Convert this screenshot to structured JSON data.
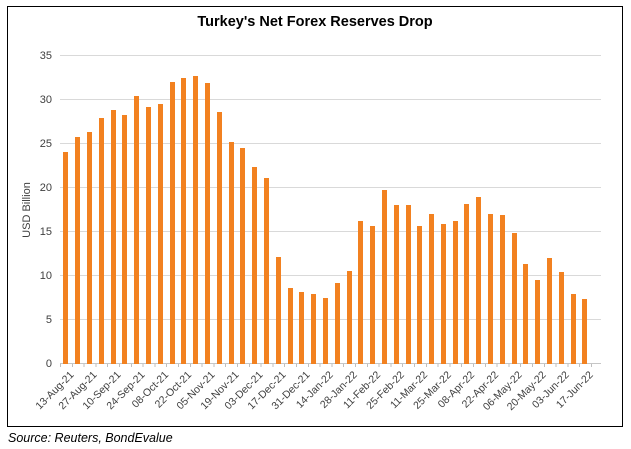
{
  "title": "Turkey's Net Forex Reserves Drop",
  "source_note": "Source: Reuters, BondEvalue",
  "chart_data": {
    "type": "bar",
    "title": "Turkey's Net Forex Reserves Drop",
    "xlabel": "",
    "ylabel": "USD Billion",
    "ylim": [
      0,
      35
    ],
    "yticks": [
      0,
      5,
      10,
      15,
      20,
      25,
      30,
      35
    ],
    "grid": true,
    "legend": false,
    "bar_color": "#F28120",
    "gridline_color": "#D9D9D9",
    "axis_line_color": "#C6C6C6",
    "tick_color": "#BFBFBF",
    "label_color": "#3F3F3F",
    "x_label_interval": 2,
    "x_labels": [
      "13-Aug-21",
      "27-Aug-21",
      "10-Sep-21",
      "24-Sep-21",
      "08-Oct-21",
      "22-Oct-21",
      "05-Nov-21",
      "19-Nov-21",
      "03-Dec-21",
      "17-Dec-21",
      "31-Dec-21",
      "14-Jan-22",
      "28-Jan-22",
      "11-Feb-22",
      "25-Feb-22",
      "11-Mar-22",
      "25-Mar-22",
      "08-Apr-22",
      "22-Apr-22",
      "06-May-22",
      "20-May-22",
      "03-Jun-22",
      "17-Jun-22"
    ],
    "values": [
      24.1,
      25.8,
      26.4,
      27.9,
      28.9,
      28.3,
      30.4,
      29.2,
      29.6,
      32.1,
      32.5,
      32.7,
      31.9,
      28.6,
      25.2,
      24.6,
      22.4,
      21.1,
      12.2,
      8.6,
      8.2,
      7.9,
      7.5,
      9.2,
      10.6,
      16.3,
      15.7,
      19.8,
      18.1,
      18.1,
      15.7,
      17.1,
      15.9,
      16.3,
      18.2,
      19.0,
      17.1,
      16.9,
      14.9,
      11.4,
      9.5,
      12.1,
      10.4,
      7.9,
      7.4
    ]
  }
}
